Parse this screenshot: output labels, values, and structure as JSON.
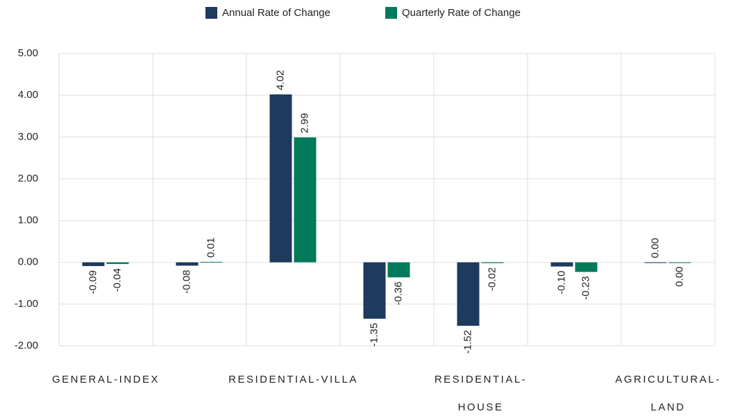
{
  "chart_data": {
    "type": "bar",
    "categories": [
      "GENERAL-INDEX",
      null,
      "RESIDENTIAL-VILLA",
      null,
      "RESIDENTIAL-HOUSE",
      null,
      "AGRICULTURAL-LAND"
    ],
    "series": [
      {
        "name": "Annual Rate of Change",
        "color": "#1e3a5c",
        "values": [
          -0.09,
          -0.08,
          4.02,
          -1.35,
          -1.52,
          -0.1,
          0
        ],
        "value_labels": [
          "-0.09",
          "-0.08",
          "4.02",
          "-1.35",
          "-1.52",
          "-0.10",
          "0.00"
        ]
      },
      {
        "name": "Quarterly Rate of Change",
        "color": "#007a5a",
        "values": [
          -0.04,
          0.01,
          2.99,
          -0.36,
          -0.02,
          -0.23,
          0
        ],
        "value_labels": [
          "-0.04",
          "0.01",
          "2.99",
          "-0.36",
          "-0.02",
          "-0.23",
          "0.00"
        ]
      }
    ],
    "ylim": [
      -2,
      5
    ],
    "yticks": [
      {
        "value": -2,
        "label": "-2.00"
      },
      {
        "value": -1,
        "label": "-1.00"
      },
      {
        "value": 0,
        "label": "0.00"
      },
      {
        "value": 1,
        "label": "1.00"
      },
      {
        "value": 2,
        "label": "2.00"
      },
      {
        "value": 3,
        "label": "3.00"
      },
      {
        "value": 4,
        "label": "4.00"
      },
      {
        "value": 5,
        "label": "5.00"
      }
    ],
    "grid": true,
    "legend": "top"
  }
}
